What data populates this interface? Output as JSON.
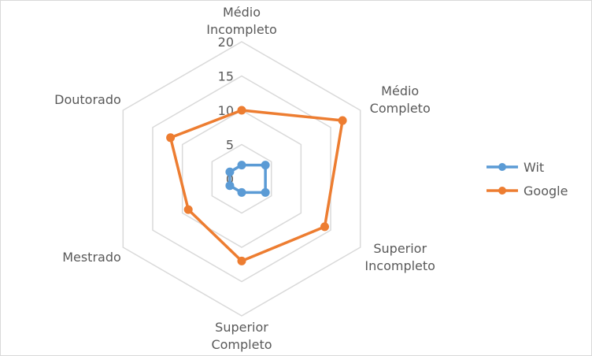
{
  "chart_data": {
    "type": "radar",
    "title": "",
    "categories": [
      [
        "Médio",
        "Incompleto"
      ],
      [
        "Médio",
        "Completo"
      ],
      [
        "Superior",
        "Incompleto"
      ],
      [
        "Superior",
        "Completo"
      ],
      [
        "Mestrado"
      ],
      [
        "Doutorado"
      ]
    ],
    "r_ticks": [
      0,
      5,
      10,
      15,
      20
    ],
    "rlim": [
      0,
      20
    ],
    "grid": true,
    "legend_position": "right",
    "series": [
      {
        "name": "Wit",
        "color": "#5b9bd5",
        "values": [
          2,
          4,
          4,
          2,
          2,
          2
        ]
      },
      {
        "name": "Google",
        "color": "#ed7d31",
        "values": [
          10,
          17,
          14,
          12,
          9,
          12
        ]
      }
    ]
  }
}
